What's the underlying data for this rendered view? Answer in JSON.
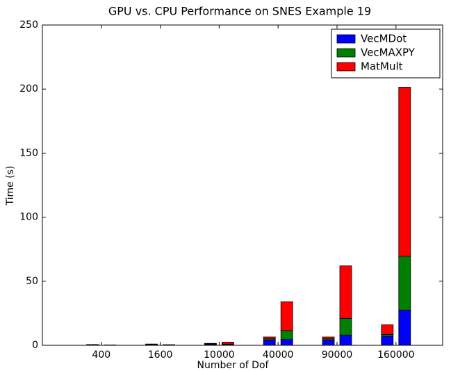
{
  "chart_data": {
    "type": "stacked-bar-pairs",
    "title": "GPU vs. CPU Performance on SNES Example 19",
    "x_label": "Number of Dof",
    "y_label": "Time (s)",
    "categories": [
      "400",
      "1600",
      "10000",
      "40000",
      "90000",
      "160000"
    ],
    "series": [
      {
        "name": "VecMDot",
        "color": "#0000ff",
        "values": [
          [
            0.3,
            0.1
          ],
          [
            0.5,
            0.2
          ],
          [
            0.8,
            0.5
          ],
          [
            4,
            4.5
          ],
          [
            4,
            8
          ],
          [
            7,
            27.5
          ]
        ]
      },
      {
        "name": "VecMAXPY",
        "color": "#008000",
        "values": [
          [
            0.1,
            0.05
          ],
          [
            0.2,
            0.1
          ],
          [
            0.3,
            0.5
          ],
          [
            1,
            7
          ],
          [
            1,
            13
          ],
          [
            1.5,
            42
          ]
        ]
      },
      {
        "name": "MatMult",
        "color": "#ff0000",
        "values": [
          [
            0.2,
            0.1
          ],
          [
            0.3,
            0.2
          ],
          [
            0.4,
            1.5
          ],
          [
            1.5,
            22.5
          ],
          [
            1.5,
            41
          ],
          [
            7.5,
            132
          ]
        ]
      }
    ],
    "ylim": [
      0,
      250
    ],
    "yticks": [
      0,
      50,
      100,
      150,
      200,
      250
    ],
    "legend": "upper right"
  }
}
